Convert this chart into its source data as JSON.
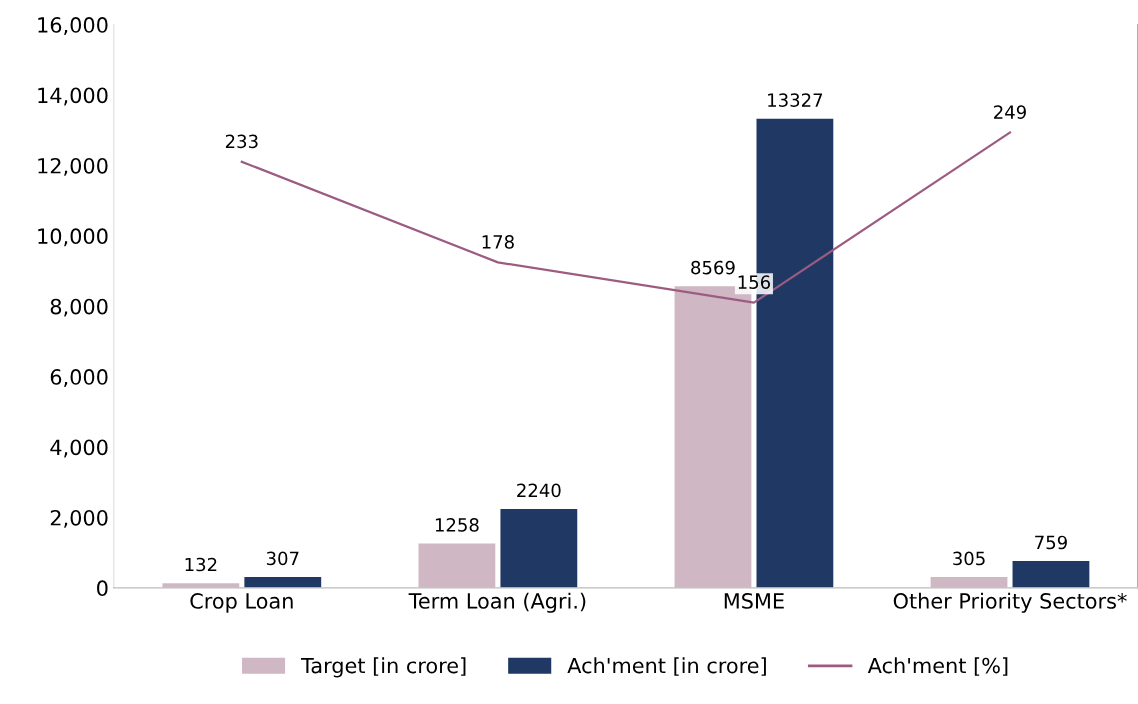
{
  "chart_data": {
    "type": "bar",
    "categories": [
      "Crop Loan",
      "Term Loan (Agri.)",
      "MSME",
      "Other Priority Sectors*"
    ],
    "series": [
      {
        "name": "Target [in crore]",
        "color": "#cfb8c4",
        "values": [
          132,
          1258,
          8569,
          305
        ]
      },
      {
        "name": "Ach'ment [in crore]",
        "color": "#203864",
        "values": [
          307,
          2240,
          13327,
          759
        ]
      },
      {
        "name": "Ach'ment [%]",
        "color": "#9c5c82",
        "type": "line",
        "axis": "y2",
        "values": [
          233,
          178,
          156,
          249
        ]
      }
    ],
    "ylim": [
      0,
      16000
    ],
    "yticks": [
      {
        "value": 0,
        "label": "0"
      },
      {
        "value": 2000,
        "label": "2,000"
      },
      {
        "value": 4000,
        "label": "4,000"
      },
      {
        "value": 6000,
        "label": "6,000"
      },
      {
        "value": 8000,
        "label": "8,000"
      },
      {
        "value": 10000,
        "label": "10,000"
      },
      {
        "value": 12000,
        "label": "12,000"
      },
      {
        "value": 14000,
        "label": "14,000"
      },
      {
        "value": 16000,
        "label": "16,000"
      }
    ],
    "y2lim": [
      0,
      308
    ],
    "data_labels": true,
    "legend": "bottom",
    "grid": false
  }
}
